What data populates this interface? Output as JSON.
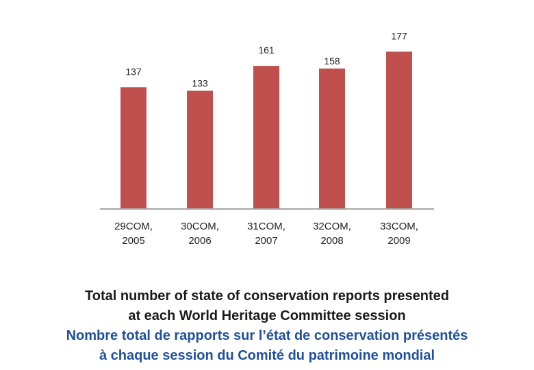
{
  "chart_data": {
    "type": "bar",
    "categories": [
      [
        "29COM,",
        "2005"
      ],
      [
        "30COM,",
        "2006"
      ],
      [
        "31COM,",
        "2007"
      ],
      [
        "32COM,",
        "2008"
      ],
      [
        "33COM,",
        "2009"
      ]
    ],
    "values": [
      137,
      133,
      161,
      158,
      177
    ],
    "data_labels": [
      "137",
      "133",
      "161",
      "158",
      "177"
    ],
    "bar_color": "#c0504d",
    "axis_color": "#a6a6a6",
    "grid": false,
    "legend": "none"
  },
  "caption": {
    "english": [
      "Total number of state of conservation reports presented",
      "at each World Heritage Committee session"
    ],
    "french": [
      "Nombre total de rapports sur l’état de conservation présentés",
      "à chaque session du Comité du patrimoine mondial"
    ]
  }
}
